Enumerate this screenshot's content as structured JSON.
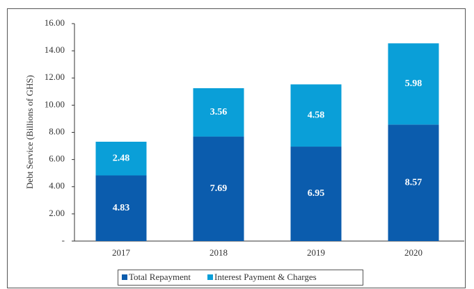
{
  "chart_data": {
    "type": "stacked_bar",
    "y_axis_label": "Debt Service (Billions of GHS)",
    "categories": [
      "2017",
      "2018",
      "2019",
      "2020"
    ],
    "series": [
      {
        "name": "Total Repayment",
        "color": "#0b5cad",
        "values": [
          4.83,
          7.69,
          6.95,
          8.57
        ]
      },
      {
        "name": "Interest Payment & Charges",
        "color": "#0a9fd8",
        "values": [
          2.48,
          3.56,
          4.58,
          5.98
        ]
      }
    ],
    "ylim": [
      0,
      16
    ],
    "yticks": [
      {
        "value": 0,
        "label": "-"
      },
      {
        "value": 2,
        "label": "2.00"
      },
      {
        "value": 4,
        "label": "4.00"
      },
      {
        "value": 6,
        "label": "6.00"
      },
      {
        "value": 8,
        "label": "8.00"
      },
      {
        "value": 10,
        "label": "10.00"
      },
      {
        "value": 12,
        "label": "12.00"
      },
      {
        "value": 14,
        "label": "14.00"
      },
      {
        "value": 16,
        "label": "16.00"
      }
    ],
    "legend": "bottom"
  }
}
